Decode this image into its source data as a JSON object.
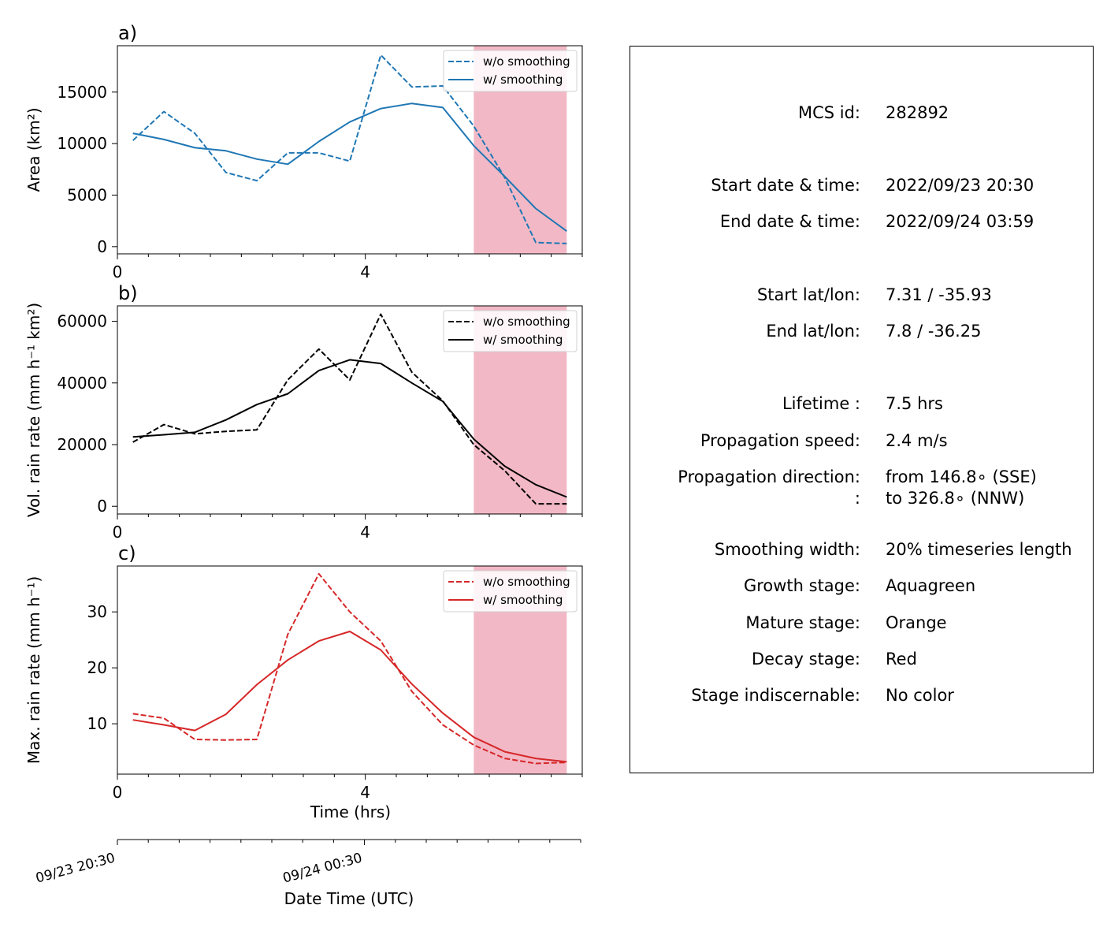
{
  "colors": {
    "blue": "#1f77b4",
    "black": "#000000",
    "red": "#d62728",
    "decay_shade": "#f2b8c6"
  },
  "chart_data": [
    {
      "type": "line",
      "panel_label": "a)",
      "ylabel": "Area  (km²)",
      "xlim": [
        0,
        7.5
      ],
      "ylim": [
        -700,
        19500
      ],
      "yticks": [
        0,
        5000,
        10000,
        15000
      ],
      "xticks": [
        0,
        4
      ],
      "shaded_region": [
        5.75,
        7.25
      ],
      "color": "#1f77b4",
      "legend": "top-right",
      "series": [
        {
          "name": "w/o smoothing",
          "style": "dashed",
          "x": [
            0.25,
            0.75,
            1.25,
            1.75,
            2.25,
            2.75,
            3.25,
            3.75,
            4.25,
            4.75,
            5.25,
            5.75,
            6.25,
            6.75,
            7.25
          ],
          "y": [
            10300,
            13100,
            11000,
            7200,
            6400,
            9100,
            9100,
            8300,
            18600,
            15500,
            15600,
            11700,
            6700,
            400,
            300
          ]
        },
        {
          "name": "w/ smoothing",
          "style": "solid",
          "x": [
            0.25,
            0.75,
            1.25,
            1.75,
            2.25,
            2.75,
            3.25,
            3.75,
            4.25,
            4.75,
            5.25,
            5.75,
            6.25,
            6.75,
            7.25
          ],
          "y": [
            11000,
            10400,
            9600,
            9300,
            8500,
            8000,
            10200,
            12100,
            13400,
            13900,
            13500,
            9800,
            6800,
            3700,
            1500
          ]
        }
      ]
    },
    {
      "type": "line",
      "panel_label": "b)",
      "ylabel": "Vol. rain rate (mm h⁻¹ km²)",
      "xlim": [
        0,
        7.5
      ],
      "ylim": [
        -2500,
        65000
      ],
      "yticks": [
        0,
        20000,
        40000,
        60000
      ],
      "xticks": [
        0,
        4
      ],
      "shaded_region": [
        5.75,
        7.25
      ],
      "color": "#000000",
      "legend": "top-right",
      "series": [
        {
          "name": "w/o smoothing",
          "style": "dashed",
          "x": [
            0.25,
            0.75,
            1.25,
            1.75,
            2.25,
            2.75,
            3.25,
            3.75,
            4.25,
            4.75,
            5.25,
            5.75,
            6.25,
            6.75,
            7.25
          ],
          "y": [
            20800,
            26500,
            23500,
            24300,
            24800,
            41000,
            51000,
            41000,
            62300,
            43500,
            34200,
            20000,
            11500,
            800,
            800
          ]
        },
        {
          "name": "w/ smoothing",
          "style": "solid",
          "x": [
            0.25,
            0.75,
            1.25,
            1.75,
            2.25,
            2.75,
            3.25,
            3.75,
            4.25,
            4.75,
            5.25,
            5.75,
            6.25,
            6.75,
            7.25
          ],
          "y": [
            22500,
            23200,
            24000,
            28000,
            33000,
            36500,
            44000,
            47500,
            46300,
            40000,
            34000,
            21800,
            13000,
            7000,
            3000
          ]
        }
      ]
    },
    {
      "type": "line",
      "panel_label": "c)",
      "ylabel": "Max. rain rate  (mm h⁻¹)",
      "xlabel": "Time (hrs)",
      "xlim": [
        0,
        7.5
      ],
      "ylim": [
        1,
        38.2
      ],
      "yticks": [
        10,
        20,
        30
      ],
      "xticks": [
        0,
        4
      ],
      "shaded_region": [
        5.75,
        7.25
      ],
      "color": "#d62728",
      "legend": "top-right",
      "series": [
        {
          "name": "w/o smoothing",
          "style": "dashed",
          "x": [
            0.25,
            0.75,
            1.25,
            1.75,
            2.25,
            2.75,
            3.25,
            3.75,
            4.25,
            4.75,
            5.25,
            5.75,
            6.25,
            6.75,
            7.25
          ],
          "y": [
            11.8,
            11.0,
            7.2,
            7.1,
            7.2,
            26.0,
            36.8,
            30.0,
            24.8,
            15.8,
            9.8,
            6.2,
            3.8,
            2.9,
            3.1
          ]
        },
        {
          "name": "w/ smoothing",
          "style": "solid",
          "x": [
            0.25,
            0.75,
            1.25,
            1.75,
            2.25,
            2.75,
            3.25,
            3.75,
            4.25,
            4.75,
            5.25,
            5.75,
            6.25,
            6.75,
            7.25
          ],
          "y": [
            10.7,
            9.8,
            8.8,
            11.7,
            17.0,
            21.4,
            24.8,
            26.5,
            23.2,
            17.1,
            11.9,
            7.6,
            5.0,
            3.8,
            3.2
          ]
        }
      ]
    }
  ],
  "date_axis": {
    "label": "Date Time (UTC)",
    "xlim": [
      0,
      7.5
    ],
    "major_ticks": [
      {
        "x": 0,
        "label": "09/23 20:30"
      },
      {
        "x": 4,
        "label": "09/24 00:30"
      }
    ]
  },
  "info": {
    "rows": [
      {
        "label": "MCS id:",
        "value": "282892"
      },
      {
        "label": "Start date & time:",
        "value": "2022/09/23 20:30"
      },
      {
        "label": "End date & time:",
        "value": "2022/09/24 03:59"
      },
      {
        "label": "Start lat/lon:",
        "value": "7.31 / -35.93"
      },
      {
        "label": "End lat/lon:",
        "value": "7.8 / -36.25"
      },
      {
        "label": "Lifetime :",
        "value": "7.5 hrs"
      },
      {
        "label": "Propagation speed:",
        "value": "2.4 m/s"
      },
      {
        "label": "Propagation direction:",
        "value": "from 146.8∘ (SSE)"
      },
      {
        "label": ":",
        "value": "to   326.8∘ (NNW)"
      },
      {
        "label": "Smoothing width:",
        "value": "20% timeseries length"
      },
      {
        "label": "Growth stage:",
        "value": "Aquagreen"
      },
      {
        "label": "Mature stage:",
        "value": "Orange"
      },
      {
        "label": "Decay stage:",
        "value": "Red"
      },
      {
        "label": "Stage indiscernable:",
        "value": "No color"
      }
    ]
  }
}
